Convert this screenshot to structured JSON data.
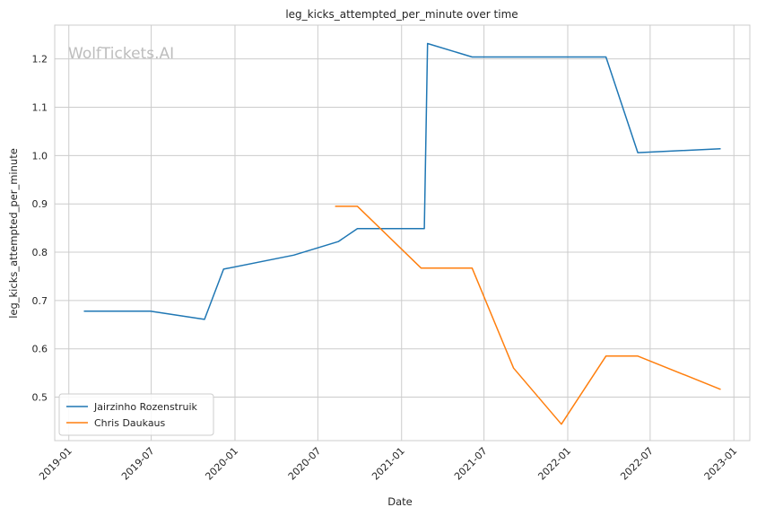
{
  "chart_data": {
    "type": "line",
    "title": "leg_kicks_attempted_per_minute over time",
    "xlabel": "Date",
    "ylabel": "leg_kicks_attempted_per_minute",
    "watermark": "WolfTickets.AI",
    "x_ticks": [
      "2019-01",
      "2019-07",
      "2020-01",
      "2020-07",
      "2021-01",
      "2021-07",
      "2022-01",
      "2022-07",
      "2023-01"
    ],
    "y_ticks": [
      "0.5",
      "0.6",
      "0.7",
      "0.8",
      "0.9",
      "1.0",
      "1.1",
      "1.2"
    ],
    "xlim": [
      "2018-12-01",
      "2023-02-05"
    ],
    "ylim": [
      0.41,
      1.27
    ],
    "grid": true,
    "legend_position": "lower-left",
    "series": [
      {
        "name": "Jairzinho Rozenstruik",
        "color": "#1f77b4",
        "x": [
          "2019-02-03",
          "2019-06-29",
          "2019-10-26",
          "2019-12-07",
          "2020-05-09",
          "2020-08-15",
          "2020-09-26",
          "2021-02-20",
          "2021-02-27",
          "2021-06-05",
          "2022-03-26",
          "2022-06-04",
          "2022-12-03"
        ],
        "y": [
          0.678,
          0.678,
          0.661,
          0.765,
          0.794,
          0.822,
          0.849,
          0.849,
          1.232,
          1.204,
          1.204,
          1.006,
          1.014
        ]
      },
      {
        "name": "Chris Daukaus",
        "color": "#ff7f0e",
        "x": [
          "2020-08-08",
          "2020-09-26",
          "2021-02-13",
          "2021-06-05",
          "2021-09-04",
          "2021-12-18",
          "2022-03-26",
          "2022-06-04",
          "2022-12-03"
        ],
        "y": [
          0.895,
          0.895,
          0.767,
          0.767,
          0.56,
          0.444,
          0.585,
          0.585,
          0.516
        ]
      }
    ]
  }
}
